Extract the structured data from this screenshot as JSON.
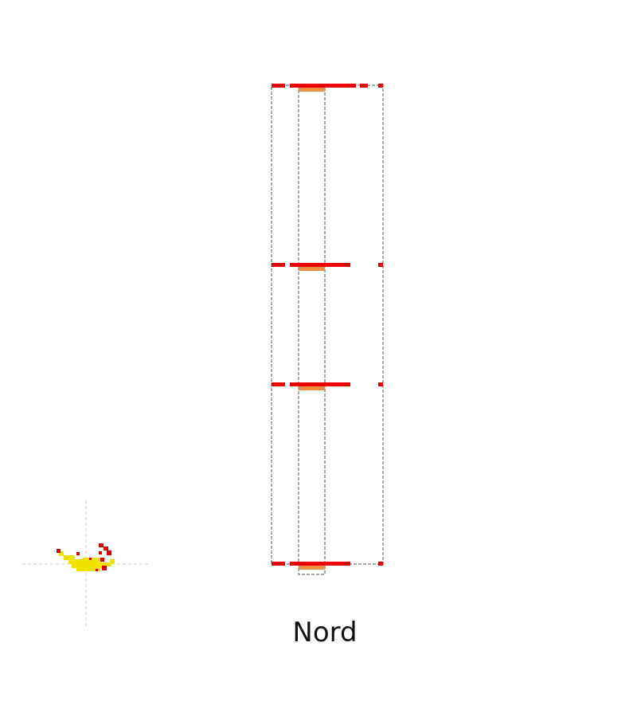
{
  "elevation": {
    "view_label": "Nord",
    "floor_count": 4
  },
  "colors": {
    "outline": "#888888",
    "crosshair": "#cccccc",
    "wall_mark": "#ee0000",
    "opening_mark": "#f08c3c",
    "marker_yellow": "#f2e200",
    "marker_red": "#e00000"
  }
}
